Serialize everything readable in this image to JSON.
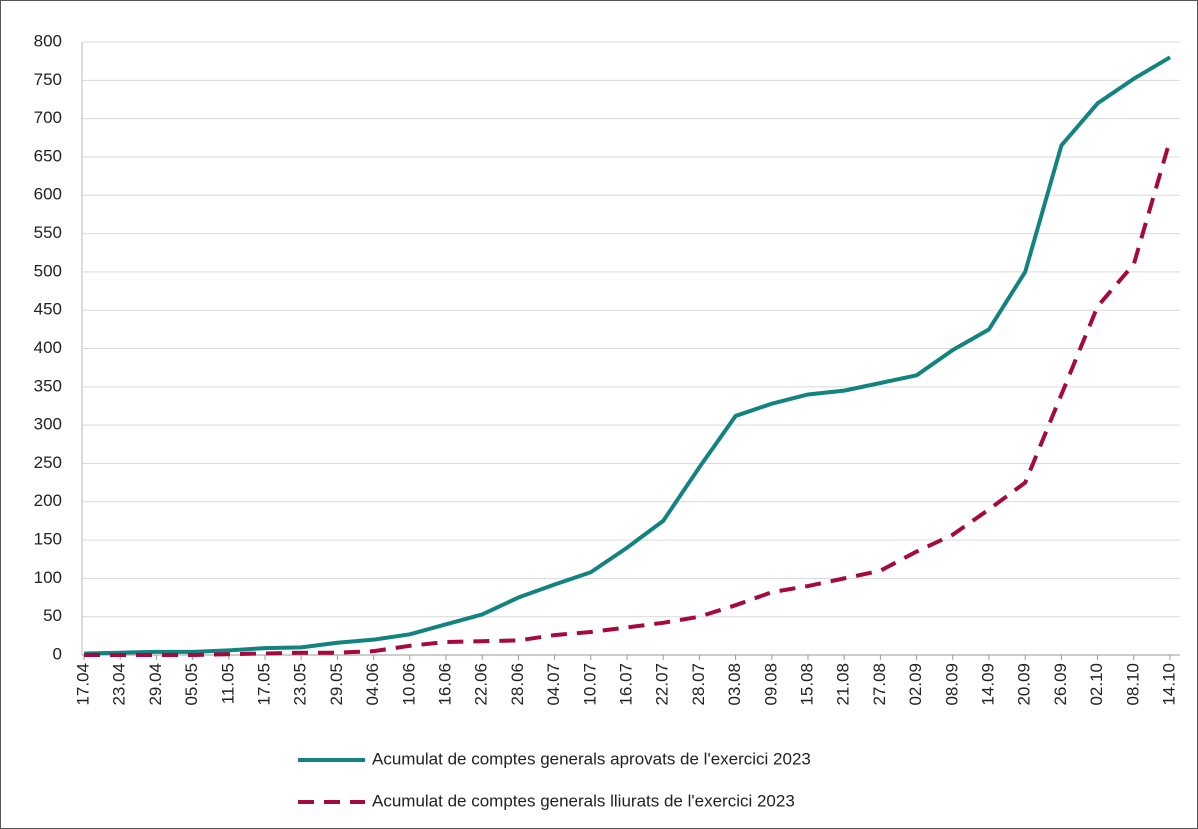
{
  "chart_data": {
    "type": "line",
    "categories": [
      "17.04",
      "23.04",
      "29.04",
      "05.05",
      "11.05",
      "17.05",
      "23.05",
      "29.05",
      "04.06",
      "10.06",
      "16.06",
      "22.06",
      "28.06",
      "04.07",
      "10.07",
      "16.07",
      "22.07",
      "28.07",
      "03.08",
      "09.08",
      "15.08",
      "21.08",
      "27.08",
      "02.09",
      "08.09",
      "14.09",
      "20.09",
      "26.09",
      "02.10",
      "08.10",
      "14.10"
    ],
    "series": [
      {
        "name": "Acumulat de comptes generals aprovats de l'exercici 2023",
        "color": "#13837f",
        "line_style": "solid",
        "values": [
          2,
          3,
          4,
          4,
          6,
          9,
          10,
          16,
          20,
          27,
          40,
          53,
          75,
          92,
          108,
          140,
          175,
          245,
          312,
          328,
          340,
          345,
          355,
          365,
          398,
          425,
          500,
          665,
          720,
          752,
          780
        ]
      },
      {
        "name": "Acumulat de comptes generals lliurats de l'exercici 2023",
        "color": "#a6093d",
        "line_style": "dashed",
        "values": [
          0,
          0,
          0,
          0,
          1,
          2,
          3,
          3,
          5,
          12,
          17,
          18,
          19,
          26,
          30,
          36,
          42,
          50,
          65,
          82,
          90,
          100,
          110,
          135,
          157,
          190,
          225,
          340,
          455,
          510,
          672
        ]
      }
    ],
    "ylim": [
      0,
      800
    ],
    "yticks": [
      0,
      50,
      100,
      150,
      200,
      250,
      300,
      350,
      400,
      450,
      500,
      550,
      600,
      650,
      700,
      750,
      800
    ],
    "grid": true
  }
}
